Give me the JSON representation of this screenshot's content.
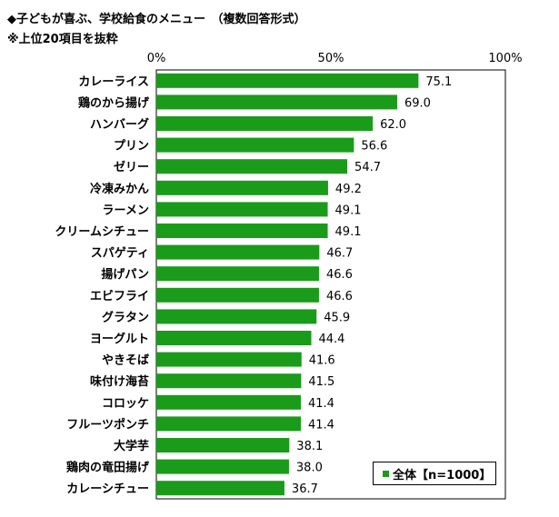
{
  "title": "◆子どもが喜ぶ、学校給食のメニュー　（複数回答形式）",
  "subtitle": "※上位20項目を抜粋",
  "legend_label": "全体【n=1000】",
  "chart_data": {
    "type": "bar",
    "orientation": "horizontal",
    "categories": [
      "カレーライス",
      "鶏のから揚げ",
      "ハンバーグ",
      "プリン",
      "ゼリー",
      "冷凍みかん",
      "ラーメン",
      "クリームシチュー",
      "スパゲティ",
      "揚げパン",
      "エビフライ",
      "グラタン",
      "ヨーグルト",
      "やきそば",
      "味付け海苔",
      "コロッケ",
      "フルーツポンチ",
      "大学芋",
      "鶏肉の竜田揚げ",
      "カレーシチュー"
    ],
    "series": [
      {
        "name": "全体【n=1000】",
        "values": [
          75.1,
          69.0,
          62.0,
          56.6,
          54.7,
          49.2,
          49.1,
          49.1,
          46.7,
          46.6,
          46.6,
          45.9,
          44.4,
          41.6,
          41.5,
          41.4,
          41.4,
          38.1,
          38.0,
          36.7
        ]
      }
    ],
    "xlim": [
      0,
      100
    ],
    "x_ticks": [
      "0%",
      "50%",
      "100%"
    ],
    "x_tick_values": [
      0,
      50,
      100
    ],
    "bar_color": "#1a9b1a",
    "legend_position": "bottom-right"
  }
}
